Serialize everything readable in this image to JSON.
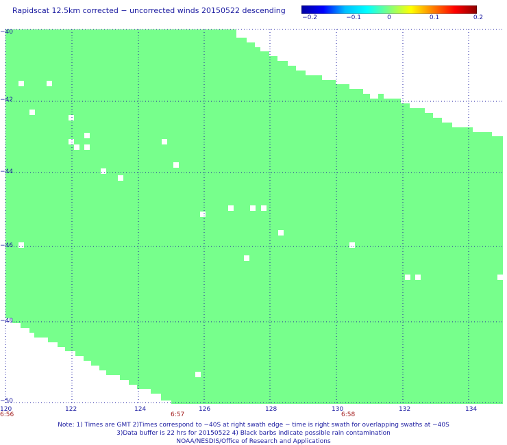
{
  "title": "Rapidscat 12.5km corrected − uncorrected winds 20150522 descending",
  "colorbar": {
    "labels": [
      "−0.2",
      "−0.1",
      "0",
      "0.1",
      "0.2"
    ],
    "stops": [
      "#0000a0",
      "#0000ff",
      "#00bfff",
      "#00ffff",
      "#7fff7f",
      "#ffff00",
      "#ff7f00",
      "#ff0000",
      "#8b0000"
    ]
  },
  "map": {
    "fill_color": "#77ff8c",
    "lon_labels": [
      "120",
      "122",
      "124",
      "126",
      "128",
      "130",
      "132",
      "134"
    ],
    "lat_labels": [
      "−40",
      "−42",
      "−44",
      "−46",
      "−48",
      "−50"
    ],
    "time_labels": [
      "6:56",
      "6:57",
      "6:58"
    ]
  },
  "notes": [
    "Note: 1) Times are GMT 2)Times correspond to −40S at right swath edge − time is right swath for overlapping swaths at −40S",
    "3)Data buffer is 22 hrs for 20150522 4) Black barbs indicate possible rain contamination",
    "NOAA/NESDIS/Office of Research and Applications"
  ]
}
